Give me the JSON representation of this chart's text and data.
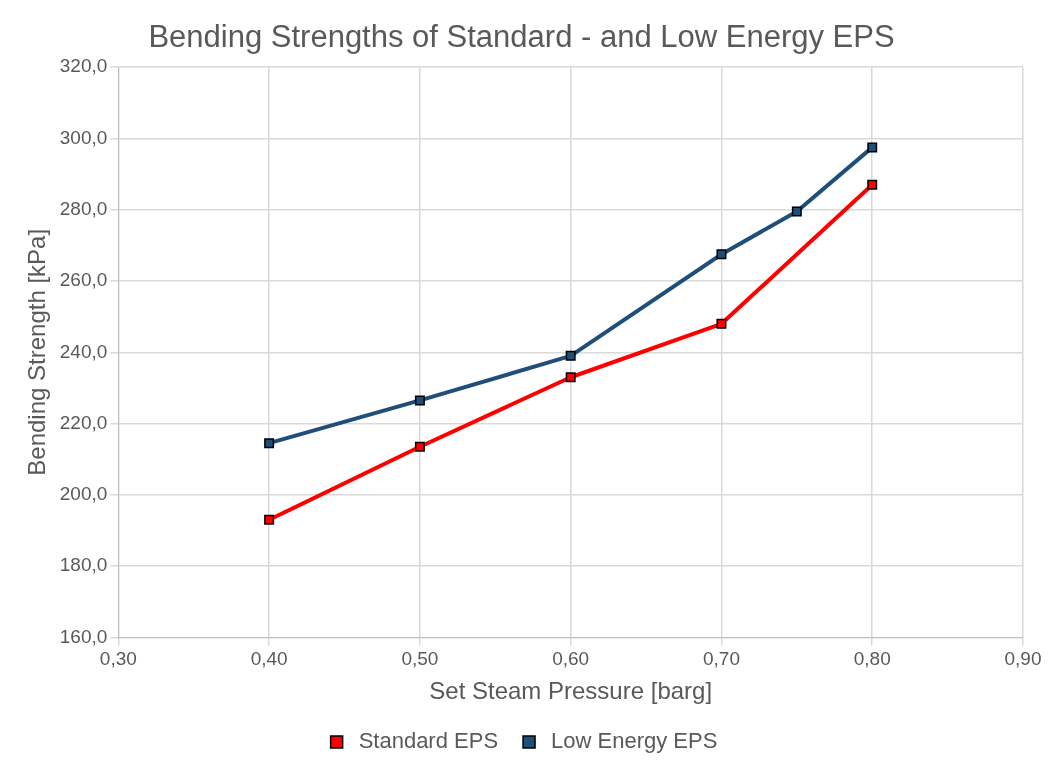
{
  "chart_data": {
    "type": "line",
    "title": "Bending Strengths of Standard - and Low Energy EPS",
    "xlabel": "Set Steam Pressure [barg]",
    "ylabel": "Bending Strength [kPa]",
    "series": [
      {
        "name": "Standard EPS",
        "color": "#ff0000",
        "x": [
          0.4,
          0.5,
          0.6,
          0.7,
          0.8
        ],
        "values": [
          193,
          213.5,
          233,
          248,
          287
        ]
      },
      {
        "name": "Low Energy EPS",
        "color": "#1f4e79",
        "x": [
          0.4,
          0.5,
          0.6,
          0.7,
          0.75,
          0.8
        ],
        "values": [
          214.5,
          226.5,
          239,
          267.5,
          279.5,
          297.5
        ]
      }
    ],
    "xlim": [
      0.3,
      0.9
    ],
    "xticks": [
      {
        "value": 0.3,
        "label": "0,30"
      },
      {
        "value": 0.4,
        "label": "0,40"
      },
      {
        "value": 0.5,
        "label": "0,50"
      },
      {
        "value": 0.6,
        "label": "0,60"
      },
      {
        "value": 0.7,
        "label": "0,70"
      },
      {
        "value": 0.8,
        "label": "0,80"
      },
      {
        "value": 0.9,
        "label": "0,90"
      }
    ],
    "ylim": [
      160,
      320
    ],
    "yticks": [
      {
        "value": 160,
        "label": "160,0"
      },
      {
        "value": 180,
        "label": "180,0"
      },
      {
        "value": 200,
        "label": "200,0"
      },
      {
        "value": 220,
        "label": "220,0"
      },
      {
        "value": 240,
        "label": "240,0"
      },
      {
        "value": 260,
        "label": "260,0"
      },
      {
        "value": 280,
        "label": "280,0"
      },
      {
        "value": 300,
        "label": "300,0"
      },
      {
        "value": 320,
        "label": "320,0"
      }
    ],
    "grid": true,
    "legend": "bottom",
    "marker": "square",
    "line_style": "solid"
  }
}
